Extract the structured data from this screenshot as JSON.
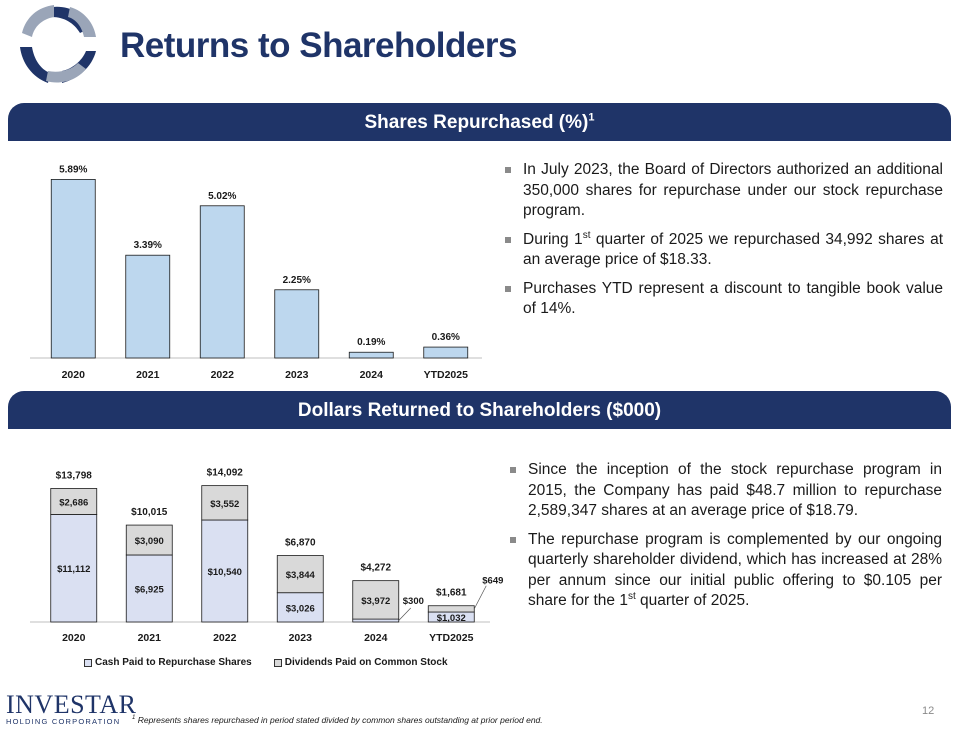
{
  "header": {
    "title": "Returns to Shareholders"
  },
  "colors": {
    "brand": "#1f3468",
    "bar_light": "#bdd7ee",
    "bar_cash": "#dae0f2",
    "bar_div": "#d9d9d9"
  },
  "section1": {
    "title": "Shares Repurchased (%)",
    "title_sup": "1",
    "bullets": [
      {
        "pre": "In July 2023, the Board of Directors authorized an additional 350,000 shares for repurchase under our stock repurchase program.",
        "sup": "",
        "post": ""
      },
      {
        "pre": "During 1",
        "sup": "st",
        "post": " quarter of 2025 we repurchased 34,992 shares at an average price of $18.33."
      },
      {
        "pre": "Purchases YTD represent a discount to tangible book value of 14%.",
        "sup": "",
        "post": ""
      }
    ]
  },
  "section2": {
    "title": "Dollars Returned to Shareholders ($000)",
    "bullets": [
      {
        "pre": "Since the inception of the stock repurchase program in 2015, the Company has paid $48.7 million to repurchase 2,589,347 shares at an average price of $18.79.",
        "sup": "",
        "post": ""
      },
      {
        "pre": "The repurchase program is complemented by our ongoing quarterly shareholder dividend, which has increased at 28% per annum since our initial public offering to $0.105 per share for the 1",
        "sup": "st",
        "post": " quarter of 2025."
      }
    ],
    "legend": [
      "Cash Paid to Repurchase Shares",
      "Dividends Paid on Common Stock"
    ]
  },
  "chart_data": [
    {
      "type": "bar",
      "title": "Shares Repurchased (%)",
      "categories": [
        "2020",
        "2021",
        "2022",
        "2023",
        "2024",
        "YTD2025"
      ],
      "values": [
        5.89,
        3.39,
        5.02,
        2.25,
        0.19,
        0.36
      ],
      "labels": [
        "5.89%",
        "3.39%",
        "5.02%",
        "2.25%",
        "0.19%",
        "0.36%"
      ],
      "ylim": [
        0,
        6.2
      ],
      "xlabel": "",
      "ylabel": ""
    },
    {
      "type": "bar",
      "stacked": true,
      "title": "Dollars Returned to Shareholders ($000)",
      "categories": [
        "2020",
        "2021",
        "2022",
        "2023",
        "2024",
        "YTD2025"
      ],
      "series": [
        {
          "name": "Cash Paid to Repurchase Shares",
          "values": [
            11112,
            6925,
            10540,
            3026,
            300,
            1032
          ],
          "labels": [
            "$11,112",
            "$6,925",
            "$10,540",
            "$3,026",
            "$300",
            "$1,032"
          ]
        },
        {
          "name": "Dividends Paid on Common Stock",
          "values": [
            2686,
            3090,
            3552,
            3844,
            3972,
            649
          ],
          "labels": [
            "$2,686",
            "$3,090",
            "$3,552",
            "$3,844",
            "$3,972",
            "$649"
          ]
        }
      ],
      "totals": [
        "$13,798",
        "$10,015",
        "$14,092",
        "$6,870",
        "$4,272",
        "$1,681"
      ],
      "ylim": [
        0,
        15500
      ],
      "xlabel": "",
      "ylabel": ""
    }
  ],
  "footer": {
    "brand_name": "INVESTAR",
    "brand_sub": "HOLDING CORPORATION",
    "footnote_sup": "1",
    "footnote": "Represents shares repurchased in period stated divided by common shares outstanding at prior period end.",
    "page_number": "12"
  }
}
